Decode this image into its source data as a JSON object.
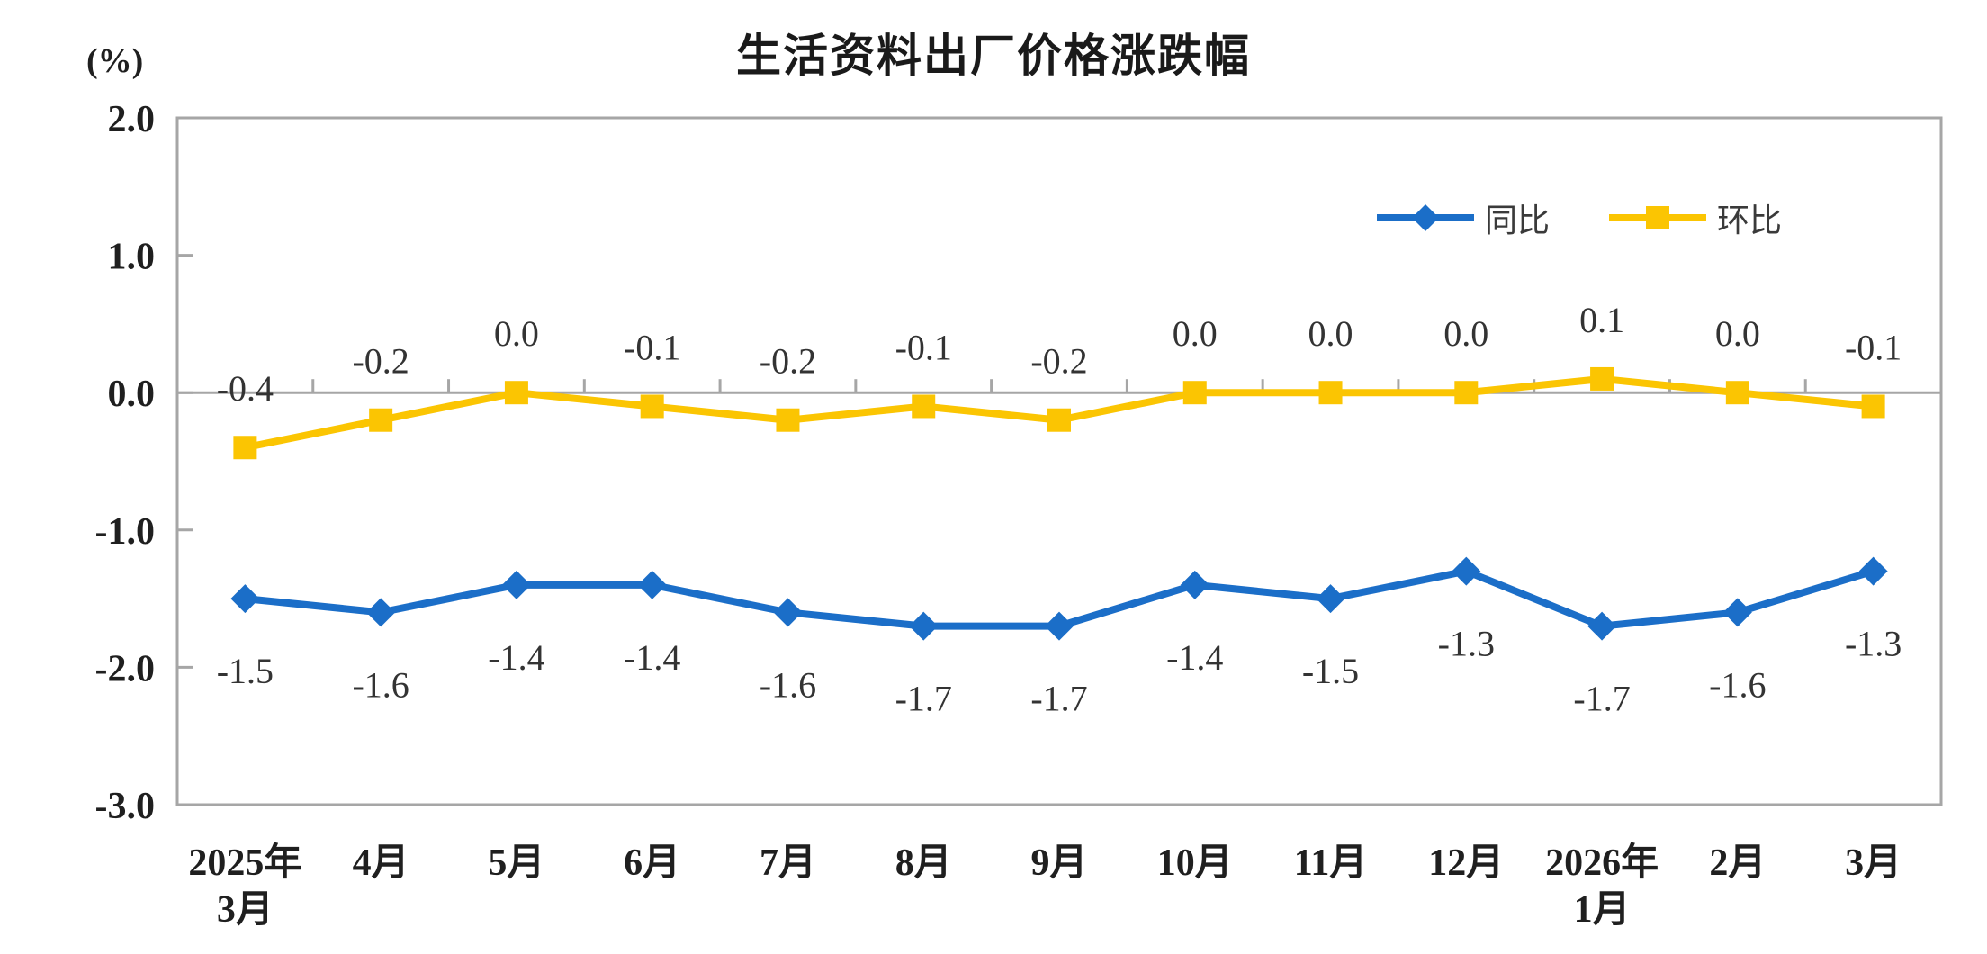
{
  "chart_data": {
    "type": "line",
    "title": "生活资料出厂价格涨跌幅",
    "unit_label": "(%)",
    "categories": [
      [
        "2025年",
        "3月"
      ],
      [
        "4月"
      ],
      [
        "5月"
      ],
      [
        "6月"
      ],
      [
        "7月"
      ],
      [
        "8月"
      ],
      [
        "9月"
      ],
      [
        "10月"
      ],
      [
        "11月"
      ],
      [
        "12月"
      ],
      [
        "2026年",
        "1月"
      ],
      [
        "2月"
      ],
      [
        "3月"
      ]
    ],
    "y_axis": {
      "min": -3.0,
      "max": 2.0,
      "tick_step": 1.0,
      "tick_labels": [
        "2.0",
        "1.0",
        "0.0",
        "-1.0",
        "-2.0",
        "-3.0"
      ]
    },
    "grid": "none",
    "legend_position": "top-right-inside",
    "series": [
      {
        "name": "同比",
        "color": "#1B6EC8",
        "marker": "diamond",
        "label_position": "below",
        "values": [
          -1.5,
          -1.6,
          -1.4,
          -1.4,
          -1.6,
          -1.7,
          -1.7,
          -1.4,
          -1.5,
          -1.3,
          -1.7,
          -1.6,
          -1.3
        ],
        "labels": [
          "-1.5",
          "-1.6",
          "-1.4",
          "-1.4",
          "-1.6",
          "-1.7",
          "-1.7",
          "-1.4",
          "-1.5",
          "-1.3",
          "-1.7",
          "-1.6",
          "-1.3"
        ]
      },
      {
        "name": "环比",
        "color": "#FBC502",
        "marker": "square",
        "label_position": "above",
        "values": [
          -0.4,
          -0.2,
          0.0,
          -0.1,
          -0.2,
          -0.1,
          -0.2,
          0.0,
          0.0,
          0.0,
          0.1,
          0.0,
          -0.1
        ],
        "labels": [
          "-0.4",
          "-0.2",
          "0.0",
          "-0.1",
          "-0.2",
          "-0.1",
          "-0.2",
          "0.0",
          "0.0",
          "0.0",
          "0.1",
          "0.0",
          "-0.1"
        ]
      }
    ],
    "colors": {
      "axis": "#A6A6A6",
      "axis_text": "#1F1F1F",
      "label_text": "#333333"
    }
  }
}
